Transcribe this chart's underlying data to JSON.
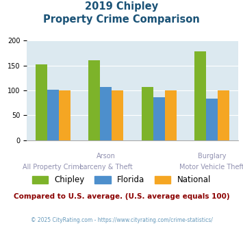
{
  "title_line1": "2019 Chipley",
  "title_line2": "Property Crime Comparison",
  "chipley": [
    153,
    160,
    107,
    179
  ],
  "florida": [
    102,
    107,
    86,
    84
  ],
  "national": [
    100,
    100,
    100,
    100
  ],
  "chipley_color": "#7db32a",
  "florida_color": "#4d8fcc",
  "national_color": "#f5a623",
  "bg_color": "#dce9f0",
  "ylim": [
    0,
    200
  ],
  "yticks": [
    0,
    50,
    100,
    150,
    200
  ],
  "top_xlabels": [
    "",
    "Arson",
    "",
    "Burglary"
  ],
  "bot_xlabels": [
    "All Property Crime",
    "Larceny & Theft",
    "",
    "Motor Vehicle Theft"
  ],
  "subtitle_text": "Compared to U.S. average. (U.S. average equals 100)",
  "footer_text": "© 2025 CityRating.com - https://www.cityrating.com/crime-statistics/",
  "title_color": "#1a5276",
  "subtitle_color": "#8b0000",
  "footer_color": "#6699bb",
  "xlabel_color": "#9090b0"
}
